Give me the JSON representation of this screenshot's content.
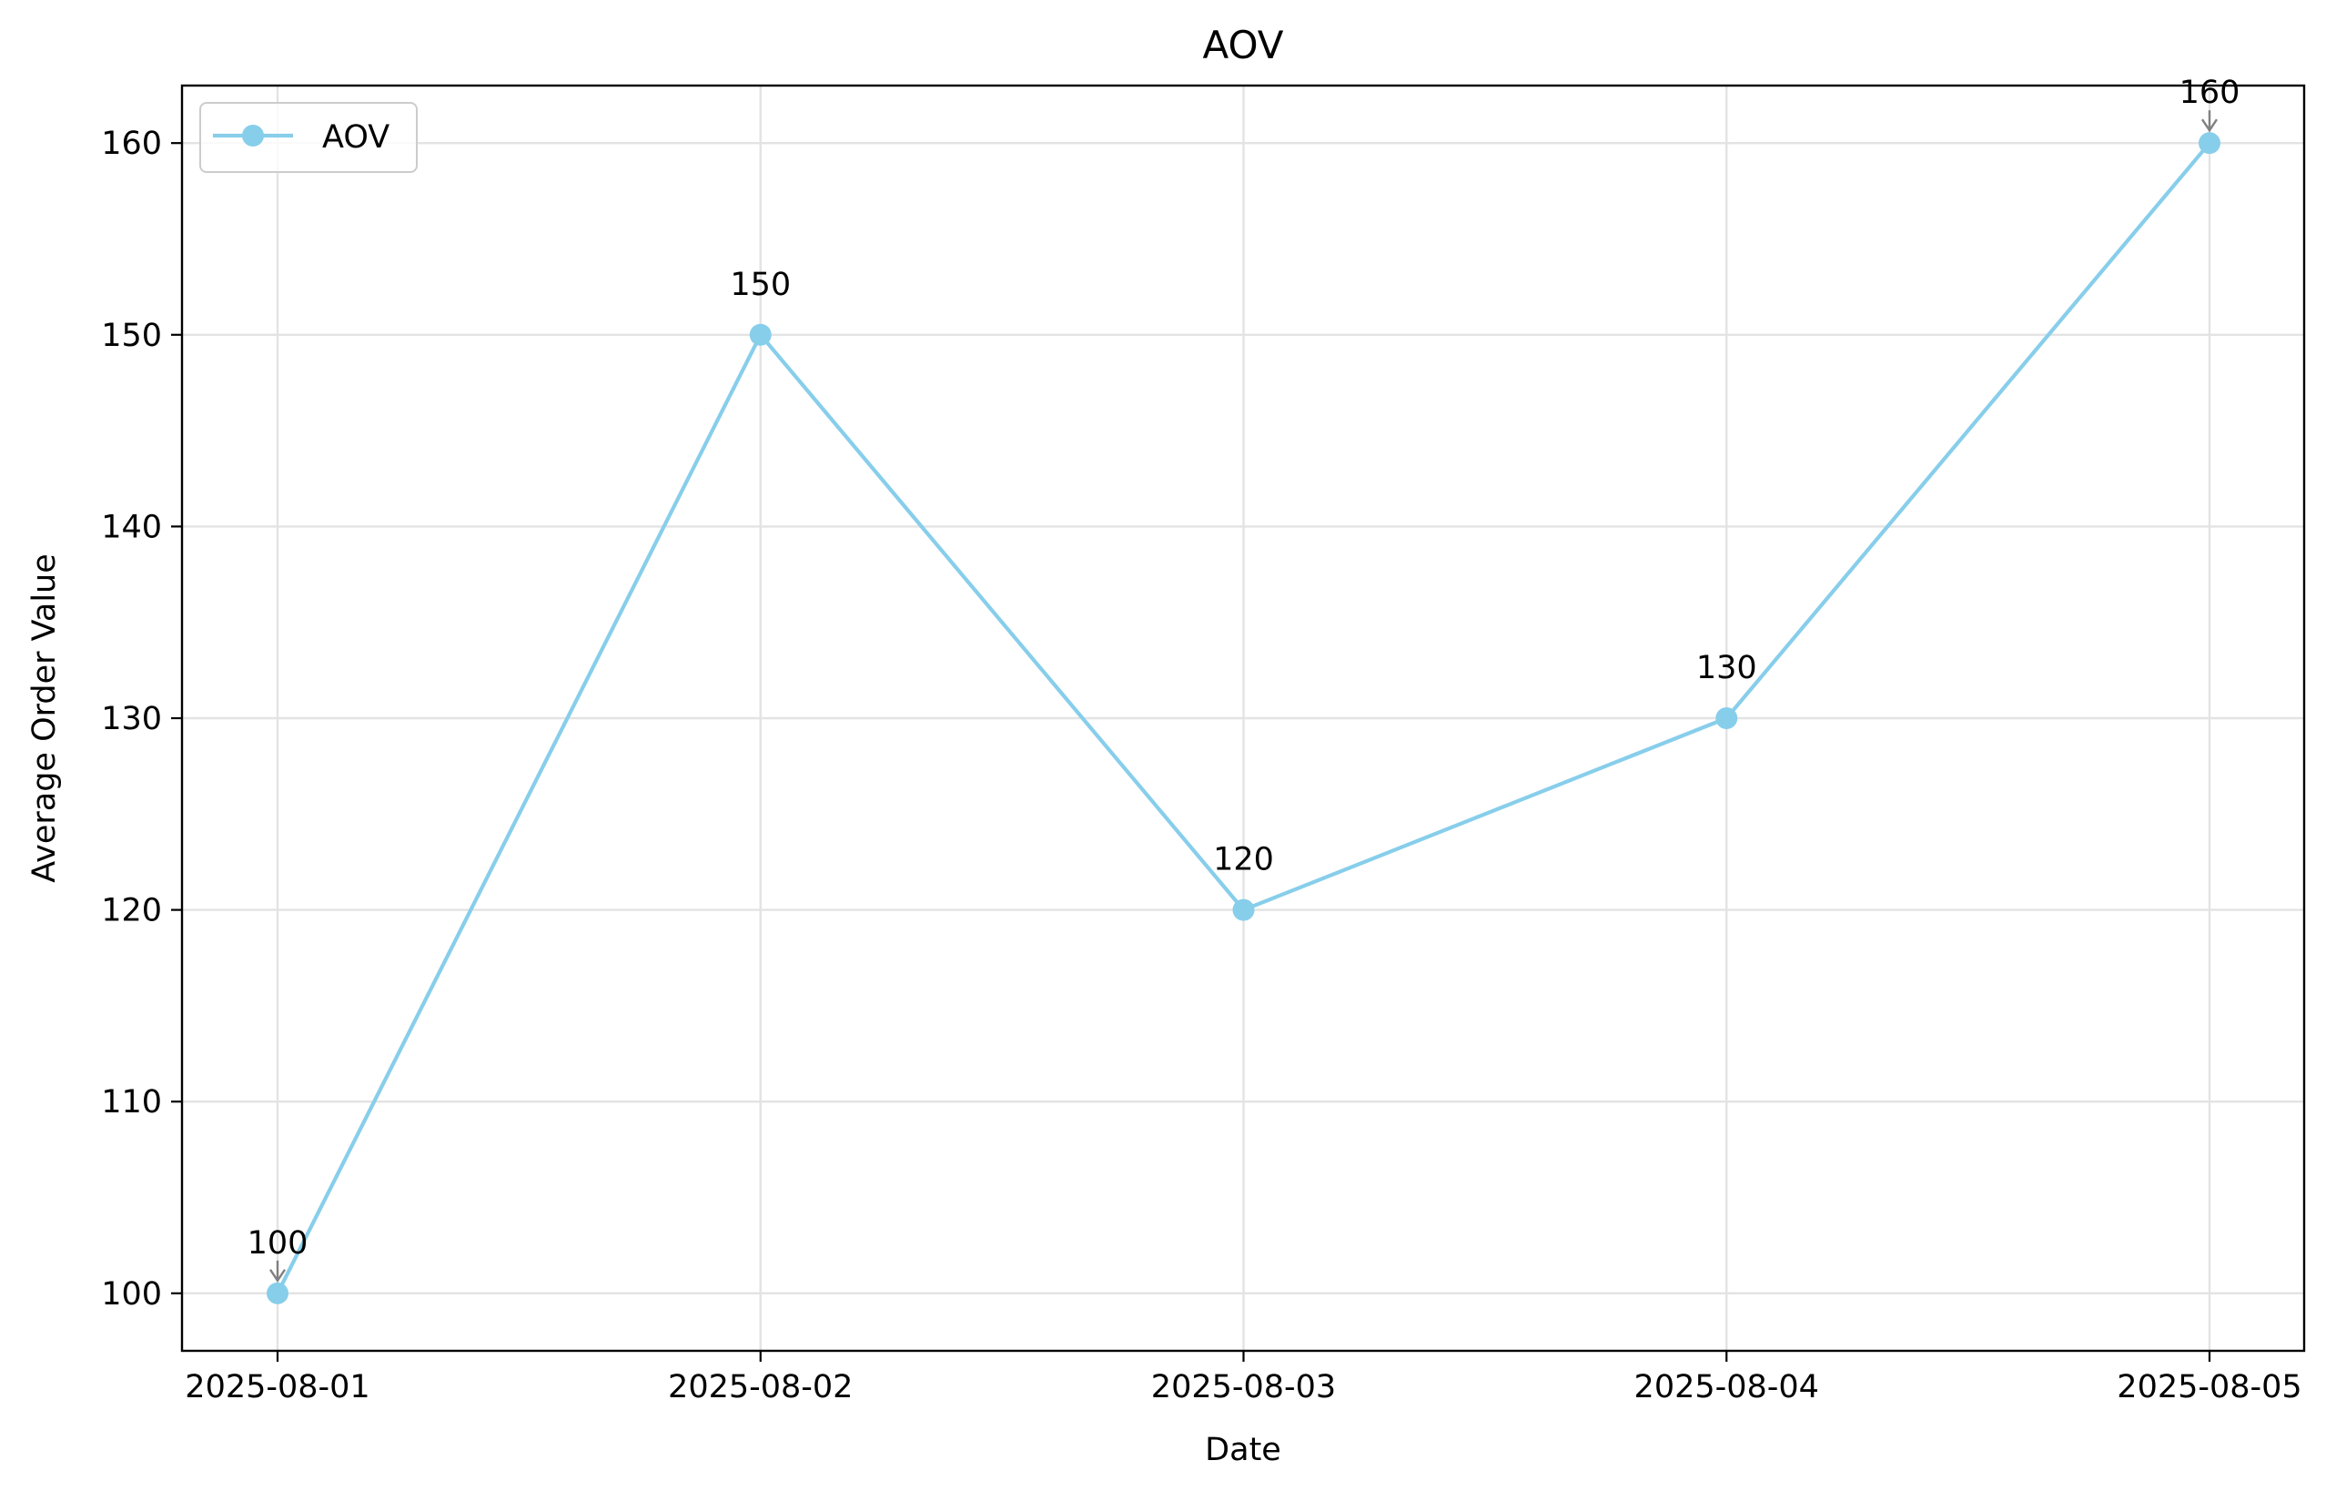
{
  "chart_data": {
    "type": "line",
    "title": "AOV",
    "xlabel": "Date",
    "ylabel": "Average Order Value",
    "categories": [
      "2025-08-01",
      "2025-08-02",
      "2025-08-03",
      "2025-08-04",
      "2025-08-05"
    ],
    "series": [
      {
        "name": "AOV",
        "values": [
          100,
          150,
          120,
          130,
          160
        ],
        "color": "#87ceeb",
        "marker": "circle"
      }
    ],
    "data_labels": [
      "100",
      "150",
      "120",
      "130",
      "160"
    ],
    "yticks": [
      100,
      110,
      120,
      130,
      140,
      150,
      160
    ],
    "ylim": [
      97,
      163
    ],
    "grid": true,
    "legend": "top-left",
    "annotation_arrow_color": "#808080"
  }
}
